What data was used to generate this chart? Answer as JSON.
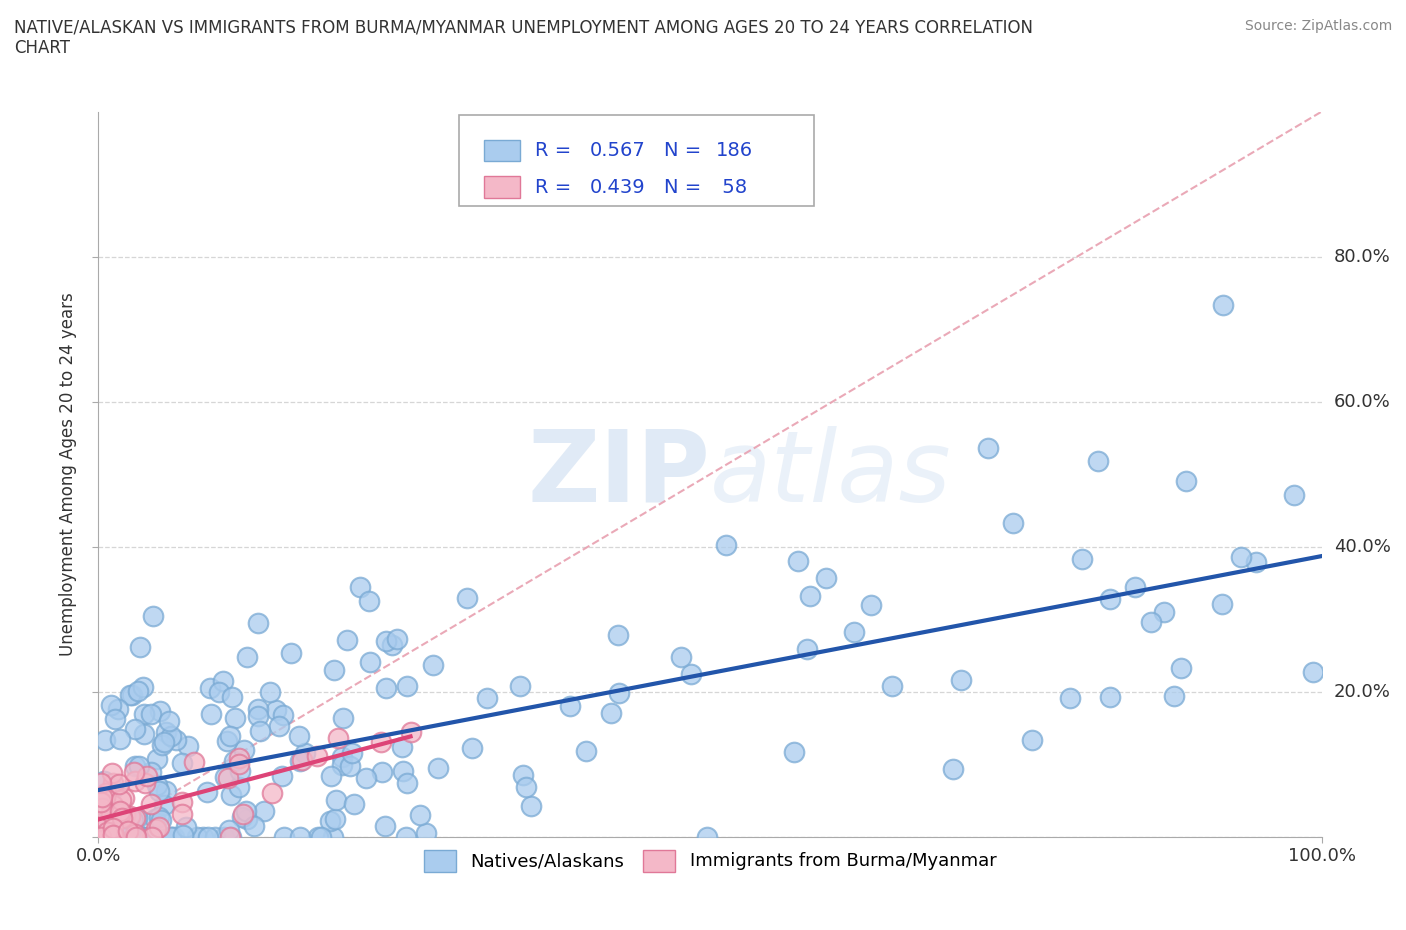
{
  "title": "NATIVE/ALASKAN VS IMMIGRANTS FROM BURMA/MYANMAR UNEMPLOYMENT AMONG AGES 20 TO 24 YEARS CORRELATION\nCHART",
  "source": "Source: ZipAtlas.com",
  "ylabel": "Unemployment Among Ages 20 to 24 years",
  "xlim": [
    0.0,
    1.0
  ],
  "ylim": [
    0.0,
    1.0
  ],
  "native_R": 0.567,
  "native_N": 186,
  "burma_R": 0.439,
  "burma_N": 58,
  "native_color": "#aaccee",
  "native_edge_color": "#7aaad4",
  "burma_color": "#f4b8c8",
  "burma_edge_color": "#e07898",
  "native_line_color": "#2255aa",
  "burma_line_color": "#dd4477",
  "diag_line_color": "#e8a0b0",
  "watermark_color": "#ccddf0",
  "background_color": "#ffffff",
  "legend_text_color": "#2244cc",
  "grid_color": "#cccccc",
  "ytick_right_positions": [
    0.2,
    0.4,
    0.6,
    0.8
  ],
  "ytick_right_labels": [
    "20.0%",
    "40.0%",
    "60.0%",
    "80.0%"
  ]
}
